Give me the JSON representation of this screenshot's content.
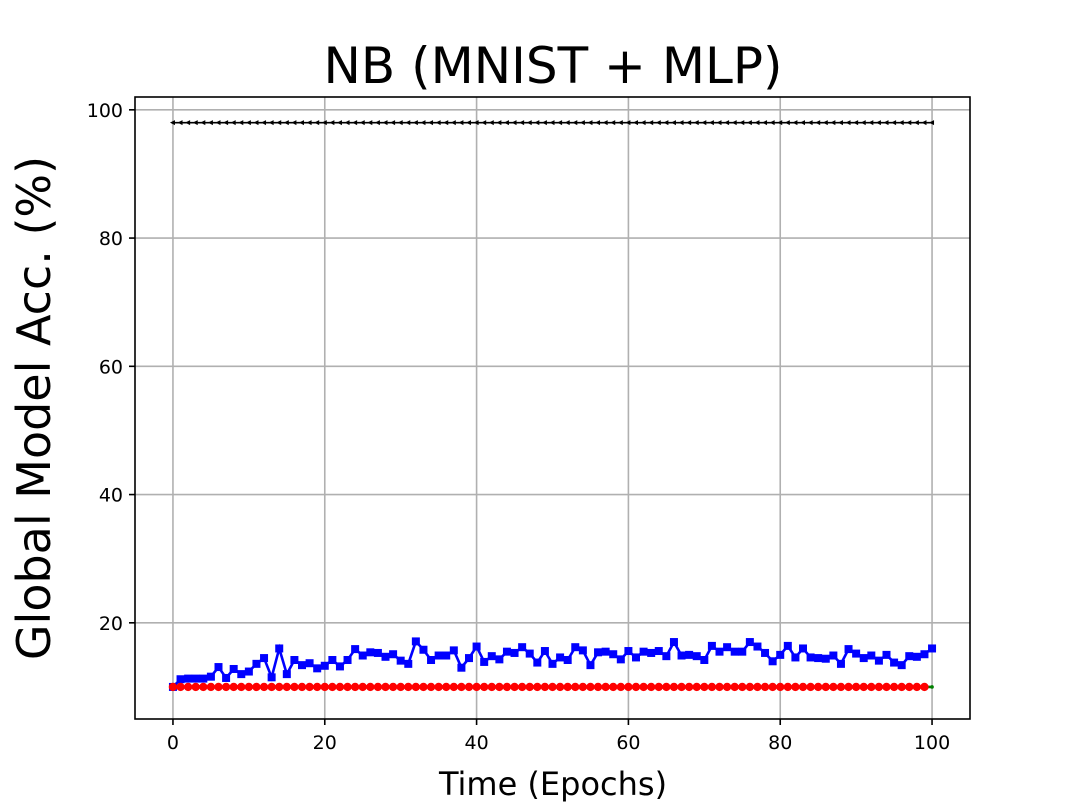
{
  "chart_data": {
    "type": "line",
    "title": "NB (MNIST + MLP)",
    "xlabel": "Time (Epochs)",
    "ylabel": "Global Model Acc. (%)",
    "xlim": [
      -5,
      105
    ],
    "ylim": [
      5,
      102
    ],
    "xticks": [
      0,
      20,
      40,
      60,
      80,
      100
    ],
    "yticks": [
      20,
      40,
      60,
      80,
      100
    ],
    "grid": true,
    "series": [
      {
        "color": "#000000",
        "marker": "triangle-left",
        "x_start": 0,
        "x_step": 1,
        "values": [
          98,
          98,
          98,
          98,
          98,
          98,
          98,
          98,
          98,
          98,
          98,
          98,
          98,
          98,
          98,
          98,
          98,
          98,
          98,
          98,
          98,
          98,
          98,
          98,
          98,
          98,
          98,
          98,
          98,
          98,
          98,
          98,
          98,
          98,
          98,
          98,
          98,
          98,
          98,
          98,
          98,
          98,
          98,
          98,
          98,
          98,
          98,
          98,
          98,
          98,
          98,
          98,
          98,
          98,
          98,
          98,
          98,
          98,
          98,
          98,
          98,
          98,
          98,
          98,
          98,
          98,
          98,
          98,
          98,
          98,
          98,
          98,
          98,
          98,
          98,
          98,
          98,
          98,
          98,
          98,
          98,
          98,
          98,
          98,
          98,
          98,
          98,
          98,
          98,
          98,
          98,
          98,
          98,
          98,
          98,
          98,
          98,
          98,
          98,
          98,
          98
        ]
      },
      {
        "color": "#0000ff",
        "marker": "square",
        "x_start": 0,
        "x_step": 1,
        "values": [
          10,
          11.2,
          11.3,
          11.3,
          11.3,
          11.6,
          13.1,
          11.4,
          12.8,
          12,
          12.4,
          13.6,
          14.5,
          11.5,
          16,
          12,
          14.2,
          13.4,
          13.7,
          12.9,
          13.3,
          14.2,
          13.2,
          14.2,
          15.9,
          14.9,
          15.4,
          15.3,
          14.7,
          15.1,
          14.1,
          13.6,
          17.1,
          15.8,
          14.2,
          14.9,
          14.9,
          15.7,
          13,
          14.5,
          16.3,
          13.9,
          14.8,
          14.3,
          15.5,
          15.3,
          16.2,
          15.2,
          13.8,
          15.6,
          13.6,
          14.6,
          14.2,
          16.2,
          15.7,
          13.4,
          15.4,
          15.5,
          15.1,
          14.3,
          15.6,
          14.6,
          15.5,
          15.3,
          15.6,
          14.8,
          17,
          14.9,
          15,
          14.8,
          14.2,
          16.4,
          15.5,
          16.2,
          15.5,
          15.5,
          17,
          16.3,
          15.3,
          14,
          15,
          16.4,
          14.6,
          16,
          14.6,
          14.5,
          14.4,
          14.9,
          13.6,
          15.9,
          15.2,
          14.5,
          14.9,
          14.1,
          15,
          13.8,
          13.4,
          14.8,
          14.7,
          15.1,
          16
        ]
      },
      {
        "color": "#ff0000",
        "marker": "circle",
        "x_start": 0,
        "x_step": 1,
        "values": [
          10,
          10,
          10,
          10,
          10,
          10,
          10,
          10,
          10,
          10,
          10,
          10,
          10,
          10,
          10,
          10,
          10,
          10,
          10,
          10,
          10,
          10,
          10,
          10,
          10,
          10,
          10,
          10,
          10,
          10,
          10,
          10,
          10,
          10,
          10,
          10,
          10,
          10,
          10,
          10,
          10,
          10,
          10,
          10,
          10,
          10,
          10,
          10,
          10,
          10,
          10,
          10,
          10,
          10,
          10,
          10,
          10,
          10,
          10,
          10,
          10,
          10,
          10,
          10,
          10,
          10,
          10,
          10,
          10,
          10,
          10,
          10,
          10,
          10,
          10,
          10,
          10,
          10,
          10,
          10,
          10,
          10,
          10,
          10,
          10,
          10,
          10,
          10,
          10,
          10,
          10,
          10,
          10,
          10,
          10,
          10,
          10,
          10,
          10,
          10
        ]
      },
      {
        "color": "#008000",
        "marker": "point",
        "x_start": 0,
        "x_step": 1,
        "values": [
          10,
          10,
          10,
          10,
          10,
          10,
          10,
          10,
          10,
          10,
          10,
          10,
          10,
          10,
          10,
          10,
          10,
          10,
          10,
          10,
          10,
          10,
          10,
          10,
          10,
          10,
          10,
          10,
          10,
          10,
          10,
          10,
          10,
          10,
          10,
          10,
          10,
          10,
          10,
          10,
          10,
          10,
          10,
          10,
          10,
          10,
          10,
          10,
          10,
          10,
          10,
          10,
          10,
          10,
          10,
          10,
          10,
          10,
          10,
          10,
          10,
          10,
          10,
          10,
          10,
          10,
          10,
          10,
          10,
          10,
          10,
          10,
          10,
          10,
          10,
          10,
          10,
          10,
          10,
          10,
          10,
          10,
          10,
          10,
          10,
          10,
          10,
          10,
          10,
          10,
          10,
          10,
          10,
          10,
          10,
          10,
          10,
          10,
          10,
          10,
          10
        ]
      }
    ]
  }
}
